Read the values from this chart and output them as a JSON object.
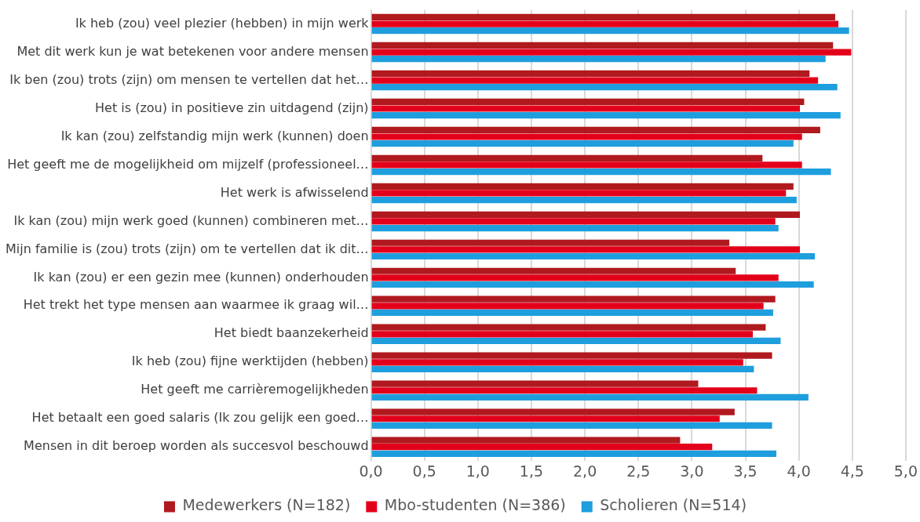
{
  "chart_data": {
    "type": "bar",
    "orientation": "horizontal",
    "categories": [
      "Ik heb (zou) veel plezier (hebben) in mijn werk",
      "Met dit werk kun je wat betekenen voor andere mensen",
      "Ik ben (zou) trots (zijn) om mensen te vertellen dat het…",
      "Het is (zou) in positieve zin uitdagend (zijn)",
      "Ik kan (zou) zelfstandig mijn werk (kunnen) doen",
      "Het geeft me de mogelijkheid om mijzelf (professioneel…",
      "Het werk is afwisselend",
      "Ik kan (zou) mijn werk goed (kunnen) combineren met…",
      "Mijn familie is (zou) trots (zijn) om te vertellen dat ik dit…",
      "Ik kan (zou) er een gezin mee (kunnen) onderhouden",
      "Het trekt het type mensen aan waarmee ik graag wil…",
      "Het biedt baanzekerheid",
      "Ik heb (zou) fijne werktijden (hebben)",
      "Het geeft me carrièremogelijkheden",
      "Het betaalt een goed salaris (Ik zou gelijk een goed…",
      "Mensen in dit beroep worden als succesvol beschouwd"
    ],
    "series": [
      {
        "name": "Medewerkers (N=182)",
        "color": "#b0191e",
        "values": [
          4.34,
          4.32,
          4.1,
          4.05,
          4.2,
          3.66,
          3.95,
          4.01,
          3.35,
          3.41,
          3.78,
          3.69,
          3.75,
          3.06,
          3.4,
          2.89
        ]
      },
      {
        "name": "Mbo-studenten (N=386)",
        "color": "#e3001b",
        "values": [
          4.37,
          4.49,
          4.18,
          4.01,
          4.03,
          4.03,
          3.88,
          3.78,
          4.01,
          3.81,
          3.67,
          3.57,
          3.48,
          3.61,
          3.26,
          3.19
        ]
      },
      {
        "name": "Scholieren (N=514)",
        "color": "#1f9ede",
        "values": [
          4.47,
          4.25,
          4.36,
          4.39,
          3.95,
          4.3,
          3.98,
          3.81,
          4.15,
          4.14,
          3.76,
          3.83,
          3.58,
          4.09,
          3.75,
          3.79
        ]
      }
    ],
    "xlim": [
      0,
      5
    ],
    "xticks": [
      {
        "value": 0,
        "label": "0,0"
      },
      {
        "value": 0.5,
        "label": "0,5"
      },
      {
        "value": 1,
        "label": "1,0"
      },
      {
        "value": 1.5,
        "label": "1,5"
      },
      {
        "value": 2,
        "label": "2,0"
      },
      {
        "value": 2.5,
        "label": "2,5"
      },
      {
        "value": 3,
        "label": "3,0"
      },
      {
        "value": 3.5,
        "label": "3,5"
      },
      {
        "value": 4,
        "label": "4,0"
      },
      {
        "value": 4.5,
        "label": "4,5"
      },
      {
        "value": 5,
        "label": "5,0"
      }
    ],
    "grid": "x",
    "legend": "bottom"
  }
}
